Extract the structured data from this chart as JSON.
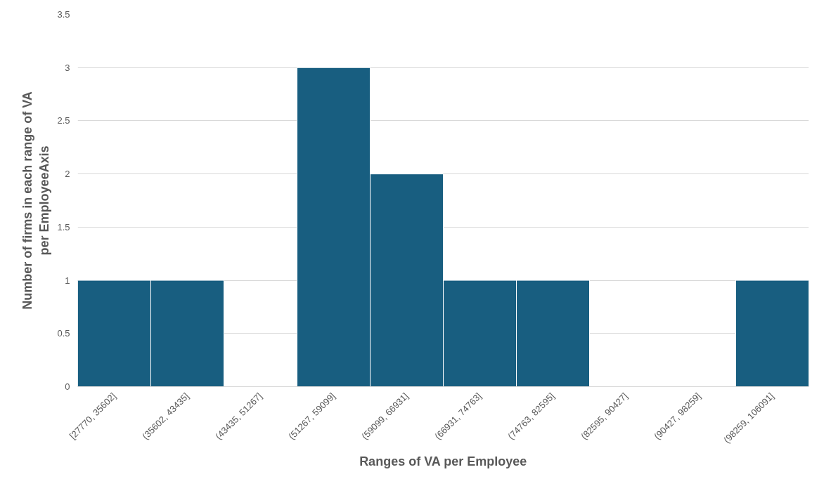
{
  "chart_data": {
    "type": "bar",
    "xlabel": "Ranges of VA per Employee",
    "ylabel": "Number of firms in each range of VA per EmployeeAxis",
    "categories": [
      "[27770, 35602]",
      "(35602, 43435]",
      "(43435, 51267]",
      "(51267, 59099]",
      "(59099, 66931]",
      "(66931, 74763]",
      "(74763, 82595]",
      "(82595, 90427]",
      "(90427, 98259]",
      "(98259, 106091]"
    ],
    "values": [
      1,
      1,
      0,
      3,
      2,
      1,
      1,
      0,
      0,
      1
    ],
    "color": "#185e80",
    "ylim": [
      0,
      3.5
    ],
    "yticks": [
      0,
      0.5,
      1,
      1.5,
      2,
      2.5,
      3,
      3.5
    ],
    "grid": "y"
  }
}
